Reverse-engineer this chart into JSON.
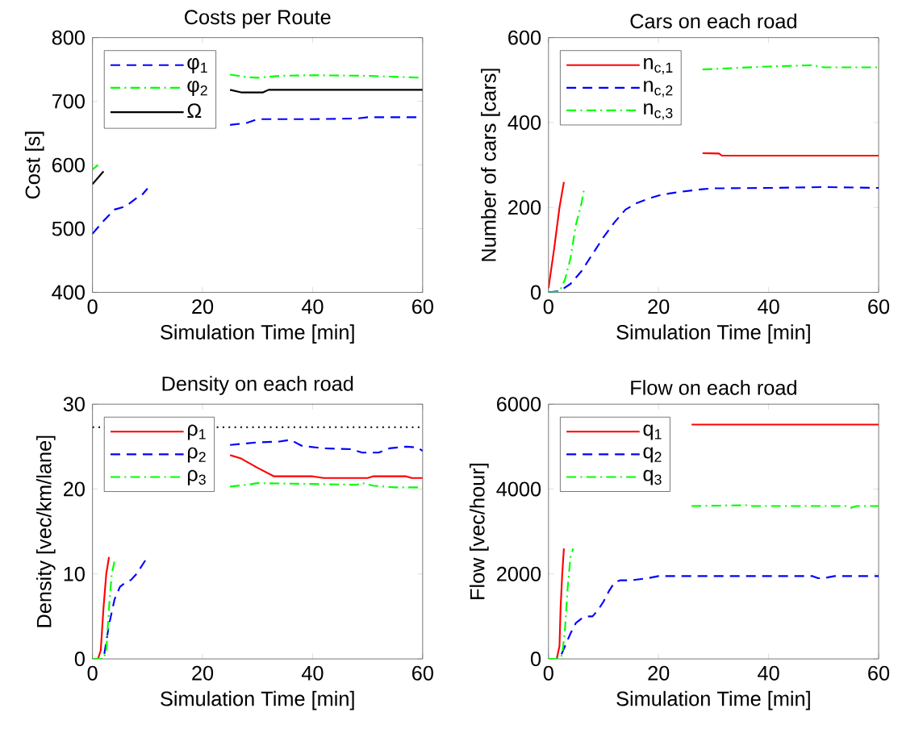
{
  "chart_data": [
    {
      "type": "line",
      "title": "Costs per Route",
      "xlabel": "Simulation Time [min]",
      "ylabel": "Cost [s]",
      "xlim": [
        0,
        60
      ],
      "xticks": [
        0,
        20,
        40,
        60
      ],
      "ylim": [
        400,
        800
      ],
      "yticks": [
        400,
        500,
        600,
        700,
        800
      ],
      "legend": "top left",
      "series": [
        {
          "name": "φ$_{1}$",
          "color": "#0000ff",
          "line_style": "dashed",
          "x": [
            0,
            2,
            4,
            6,
            8,
            9,
            10,
            12,
            25,
            28,
            30,
            40,
            48,
            50,
            60
          ],
          "values": [
            492,
            512,
            530,
            535,
            548,
            553,
            563,
            null,
            663,
            666,
            672,
            672,
            673,
            675,
            675
          ]
        },
        {
          "name": "φ$_{2}$",
          "color": "#00ff00",
          "line_style": "dashdot",
          "x": [
            0,
            1,
            12,
            25,
            28,
            30,
            34,
            40,
            50,
            60
          ],
          "values": [
            593,
            600,
            null,
            742,
            738,
            737,
            740,
            741,
            740,
            737
          ]
        },
        {
          "name": "Ω",
          "color": "#000000",
          "line_style": "solid",
          "x": [
            0,
            2,
            12,
            25,
            27,
            31,
            32,
            60
          ],
          "values": [
            570,
            590,
            null,
            718,
            714,
            714,
            718,
            718
          ]
        }
      ]
    },
    {
      "type": "line",
      "title": "Cars on each road",
      "xlabel": "Simulation Time [min]",
      "ylabel": "Number of cars [cars]",
      "xlim": [
        0,
        60
      ],
      "xticks": [
        0,
        20,
        40,
        60
      ],
      "ylim": [
        0,
        600
      ],
      "yticks": [
        0,
        200,
        400,
        600
      ],
      "legend": "top left",
      "series": [
        {
          "name": "n$_{c,1}$",
          "color": "#ff0000",
          "line_style": "solid",
          "x": [
            0,
            1,
            2,
            2.8,
            12,
            28,
            31,
            31.5,
            60
          ],
          "values": [
            10,
            100,
            200,
            260,
            null,
            328,
            327,
            322,
            322
          ]
        },
        {
          "name": "n$_{c,2}$",
          "color": "#0000ff",
          "line_style": "dashed",
          "x": [
            0,
            2,
            4,
            6,
            8,
            10,
            12,
            14,
            16,
            18,
            20,
            22,
            24,
            26,
            28,
            30,
            40,
            50,
            60
          ],
          "values": [
            0,
            3,
            20,
            50,
            90,
            130,
            165,
            195,
            210,
            220,
            228,
            233,
            237,
            240,
            243,
            245,
            246,
            248,
            246
          ]
        },
        {
          "name": "n$_{c,3}$",
          "color": "#00ff00",
          "line_style": "dashdot",
          "x": [
            0,
            2,
            3,
            4,
            5,
            6,
            6.5,
            12,
            28,
            40,
            48,
            50,
            60
          ],
          "values": [
            0,
            2,
            30,
            80,
            160,
            210,
            245,
            null,
            525,
            532,
            535,
            530,
            530
          ]
        }
      ]
    },
    {
      "type": "line",
      "title": "Density on each road",
      "xlabel": "Simulation Time [min]",
      "ylabel": "Density [vec/km/lane]",
      "xlim": [
        0,
        60
      ],
      "xticks": [
        0,
        20,
        40,
        60
      ],
      "ylim": [
        0,
        30
      ],
      "yticks": [
        0,
        10,
        20,
        30
      ],
      "legend": "top left",
      "ref_lines": [
        {
          "axis": "y",
          "value": 27.3,
          "color": "#000000",
          "line_style": "dotted"
        }
      ],
      "series": [
        {
          "name": "ρ$_{1}$",
          "color": "#ff0000",
          "line_style": "solid",
          "x": [
            0,
            1,
            1.5,
            2,
            2.5,
            3,
            12,
            25,
            27,
            30,
            33,
            40,
            42,
            50,
            51,
            57,
            58,
            60
          ],
          "values": [
            0,
            0,
            1,
            6,
            10,
            12,
            null,
            24,
            23.6,
            22.5,
            21.5,
            21.5,
            21.3,
            21.3,
            21.5,
            21.5,
            21.3,
            21.3
          ]
        },
        {
          "name": "ρ$_{2}$",
          "color": "#0000ff",
          "line_style": "dashed",
          "x": [
            0,
            2,
            3,
            4,
            5,
            6,
            7,
            8,
            9,
            10,
            12,
            25,
            30,
            34,
            36,
            38,
            42,
            47,
            49,
            52,
            54,
            57,
            59,
            60
          ],
          "values": [
            0,
            0,
            4,
            7,
            8.5,
            9,
            9.3,
            10,
            11,
            12,
            null,
            25.2,
            25.5,
            25.6,
            25.8,
            25.1,
            24.8,
            24.7,
            24.3,
            24.3,
            24.8,
            25,
            24.9,
            24.5
          ]
        },
        {
          "name": "ρ$_{3}$",
          "color": "#00ff00",
          "line_style": "dashdot",
          "x": [
            0,
            2,
            2.5,
            3,
            3.5,
            4,
            12,
            25,
            28,
            30,
            40,
            48,
            49,
            51,
            55,
            60
          ],
          "values": [
            0,
            0,
            1,
            6,
            10,
            11.5,
            null,
            20.3,
            20.5,
            20.7,
            20.6,
            20.5,
            20.7,
            20.4,
            20.2,
            20.2
          ]
        }
      ]
    },
    {
      "type": "line",
      "title": "Flow on each road",
      "xlabel": "Simulation Time [min]",
      "ylabel": "Flow [vec/hour]",
      "xlim": [
        0,
        60
      ],
      "xticks": [
        0,
        20,
        40,
        60
      ],
      "ylim": [
        0,
        6000
      ],
      "yticks": [
        0,
        2000,
        4000,
        6000
      ],
      "legend": "top left",
      "series": [
        {
          "name": "q$_{1}$",
          "color": "#ff0000",
          "line_style": "solid",
          "x": [
            0,
            1.5,
            2,
            2.2,
            2.5,
            2.8,
            12,
            26,
            60
          ],
          "values": [
            0,
            0,
            300,
            1200,
            2000,
            2600,
            null,
            5520,
            5520
          ]
        },
        {
          "name": "q$_{2}$",
          "color": "#0000ff",
          "line_style": "dashed",
          "x": [
            0,
            2,
            3,
            4,
            5,
            6,
            7,
            8,
            9,
            10,
            11,
            12,
            13,
            15,
            18,
            20,
            30,
            40,
            48,
            49,
            50,
            52,
            60
          ],
          "values": [
            0,
            0,
            300,
            600,
            850,
            950,
            1000,
            1000,
            1150,
            1350,
            1600,
            1800,
            1850,
            1850,
            1900,
            1950,
            1950,
            1950,
            1950,
            1900,
            1900,
            1950,
            1950
          ]
        },
        {
          "name": "q$_{3}$",
          "color": "#00ff00",
          "line_style": "dashdot",
          "x": [
            0,
            2,
            2.5,
            3,
            3.5,
            4,
            4.5,
            12,
            26,
            36,
            37,
            54,
            55,
            56,
            60
          ],
          "values": [
            0,
            0,
            100,
            700,
            1700,
            2400,
            2600,
            null,
            3600,
            3620,
            3600,
            3600,
            3560,
            3600,
            3600
          ]
        }
      ]
    }
  ]
}
